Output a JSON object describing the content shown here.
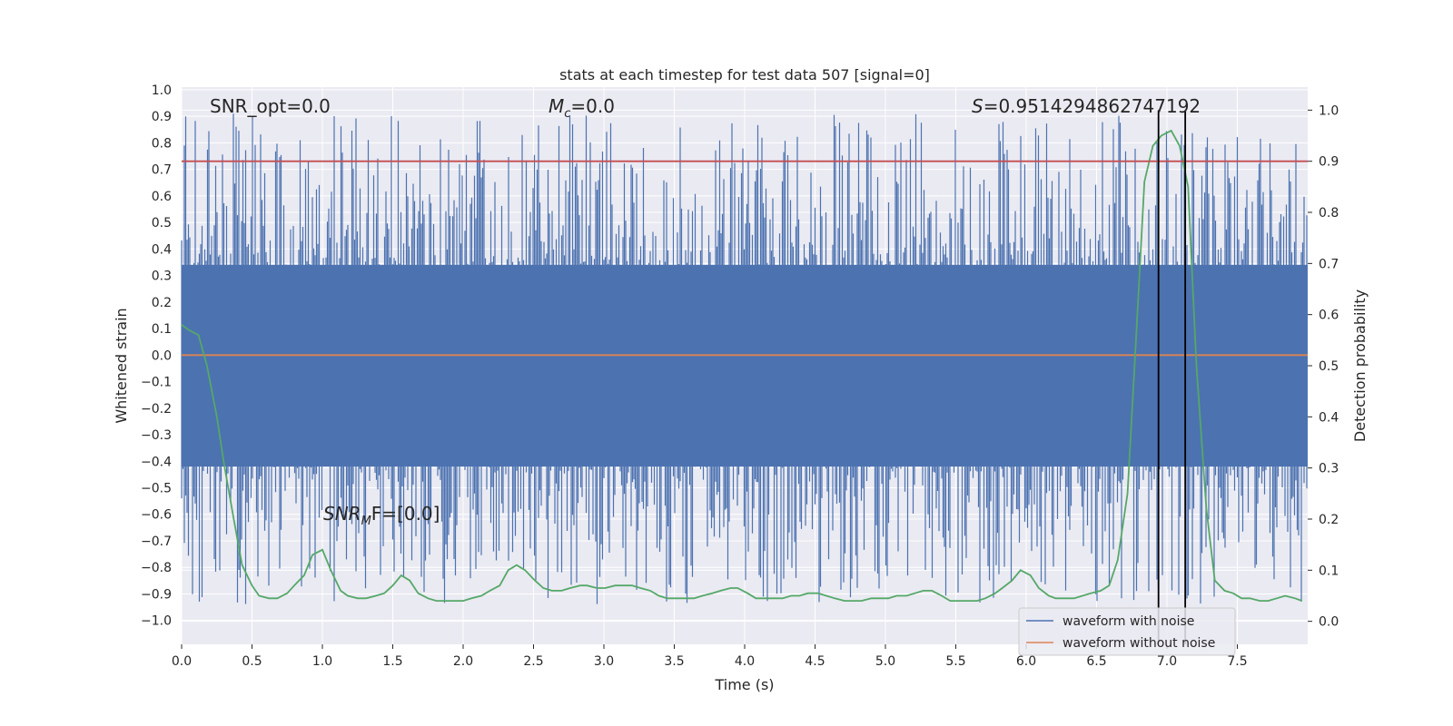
{
  "chart_data": {
    "type": "line",
    "title": "stats at each timestep for test data 507 [signal=0]",
    "xlabel": "Time (s)",
    "ylabel_left": "Whitened strain",
    "ylabel_right": "Detection probability",
    "xlim": [
      0.0,
      8.0
    ],
    "ylim_left": [
      -1.09,
      1.01
    ],
    "ylim_right": [
      -0.045,
      1.045
    ],
    "x_ticks": [
      "0.0",
      "0.5",
      "1.0",
      "1.5",
      "2.0",
      "2.5",
      "3.0",
      "3.5",
      "4.0",
      "4.5",
      "5.0",
      "5.5",
      "6.0",
      "6.5",
      "7.0",
      "7.5"
    ],
    "y_ticks_left": [
      "1.0",
      "0.9",
      "0.8",
      "0.7",
      "0.6",
      "0.5",
      "0.4",
      "0.3",
      "0.2",
      "0.1",
      "0.0",
      "−0.1",
      "−0.2",
      "−0.3",
      "−0.4",
      "−0.5",
      "−0.6",
      "−0.7",
      "−0.8",
      "−0.9",
      "−1.0"
    ],
    "y_ticks_right": [
      "1.0",
      "0.9",
      "0.8",
      "0.7",
      "0.6",
      "0.5",
      "0.4",
      "0.3",
      "0.2",
      "0.1",
      "0.0"
    ],
    "annotations": {
      "snr_opt": "SNR_opt=0.0",
      "mc_symbol": "M",
      "mc_sub": "c",
      "mc_value": "=0.0",
      "s_symbol": "S",
      "s_value": "=0.9514294862747192",
      "snr_mf_symbol": "SNR",
      "snr_mf_sub": "M",
      "snr_mf_value": "F=[0.0]"
    },
    "threshold": 0.9,
    "detection_window": [
      6.94,
      7.13
    ],
    "series": [
      {
        "name": "waveform with noise",
        "color": "#4c72b0",
        "noise_band": [
          -0.42,
          0.34
        ],
        "peak_max": 0.91,
        "peak_min": -0.94
      },
      {
        "name": "waveform without noise",
        "color": "#dd8452",
        "constant_value": 0.0
      },
      {
        "color": "#55a868",
        "axis": "right",
        "x": [
          0.0,
          0.05,
          0.12,
          0.18,
          0.25,
          0.3,
          0.37,
          0.43,
          0.5,
          0.55,
          0.62,
          0.68,
          0.75,
          0.8,
          0.87,
          0.93,
          1.0,
          1.06,
          1.13,
          1.18,
          1.25,
          1.31,
          1.38,
          1.44,
          1.5,
          1.56,
          1.62,
          1.68,
          1.75,
          1.81,
          1.88,
          1.93,
          2.0,
          2.06,
          2.13,
          2.19,
          2.26,
          2.32,
          2.38,
          2.44,
          2.51,
          2.57,
          2.63,
          2.7,
          2.76,
          2.83,
          2.88,
          2.95,
          3.01,
          3.08,
          3.14,
          3.2,
          3.26,
          3.33,
          3.39,
          3.45,
          3.51,
          3.58,
          3.64,
          3.7,
          3.77,
          3.83,
          3.9,
          3.95,
          4.02,
          4.08,
          4.14,
          4.2,
          4.27,
          4.33,
          4.39,
          4.45,
          4.52,
          4.58,
          4.64,
          4.71,
          4.77,
          4.83,
          4.9,
          4.96,
          5.02,
          5.08,
          5.15,
          5.21,
          5.27,
          5.33,
          5.4,
          5.46,
          5.52,
          5.58,
          5.65,
          5.71,
          5.78,
          5.83,
          5.9,
          5.96,
          6.03,
          6.09,
          6.16,
          6.21,
          6.28,
          6.34,
          6.4,
          6.46,
          6.53,
          6.59,
          6.65,
          6.72,
          6.78,
          6.84,
          6.9,
          6.96,
          7.03,
          7.09,
          7.15,
          7.21,
          7.28,
          7.34,
          7.41,
          7.47,
          7.53,
          7.59,
          7.66,
          7.72,
          7.78,
          7.84,
          7.91,
          7.96
        ],
        "values": [
          0.58,
          0.57,
          0.56,
          0.5,
          0.4,
          0.31,
          0.2,
          0.11,
          0.07,
          0.05,
          0.045,
          0.045,
          0.055,
          0.07,
          0.09,
          0.13,
          0.14,
          0.1,
          0.06,
          0.05,
          0.045,
          0.045,
          0.05,
          0.055,
          0.07,
          0.09,
          0.08,
          0.055,
          0.045,
          0.04,
          0.04,
          0.04,
          0.04,
          0.045,
          0.05,
          0.06,
          0.07,
          0.1,
          0.11,
          0.1,
          0.08,
          0.065,
          0.06,
          0.06,
          0.065,
          0.07,
          0.07,
          0.065,
          0.065,
          0.07,
          0.07,
          0.07,
          0.065,
          0.06,
          0.05,
          0.045,
          0.045,
          0.045,
          0.045,
          0.05,
          0.055,
          0.06,
          0.065,
          0.065,
          0.055,
          0.045,
          0.045,
          0.045,
          0.045,
          0.05,
          0.05,
          0.055,
          0.055,
          0.05,
          0.045,
          0.04,
          0.04,
          0.04,
          0.045,
          0.045,
          0.045,
          0.05,
          0.05,
          0.055,
          0.06,
          0.06,
          0.05,
          0.04,
          0.04,
          0.04,
          0.04,
          0.045,
          0.055,
          0.065,
          0.08,
          0.1,
          0.09,
          0.065,
          0.05,
          0.045,
          0.045,
          0.045,
          0.05,
          0.055,
          0.06,
          0.07,
          0.12,
          0.25,
          0.55,
          0.86,
          0.93,
          0.95,
          0.96,
          0.93,
          0.85,
          0.5,
          0.22,
          0.08,
          0.06,
          0.055,
          0.045,
          0.045,
          0.04,
          0.04,
          0.045,
          0.05,
          0.045,
          0.04
        ]
      }
    ],
    "legend": {
      "placement": "lower-right",
      "entries": [
        "waveform with noise",
        "waveform without noise"
      ]
    }
  }
}
